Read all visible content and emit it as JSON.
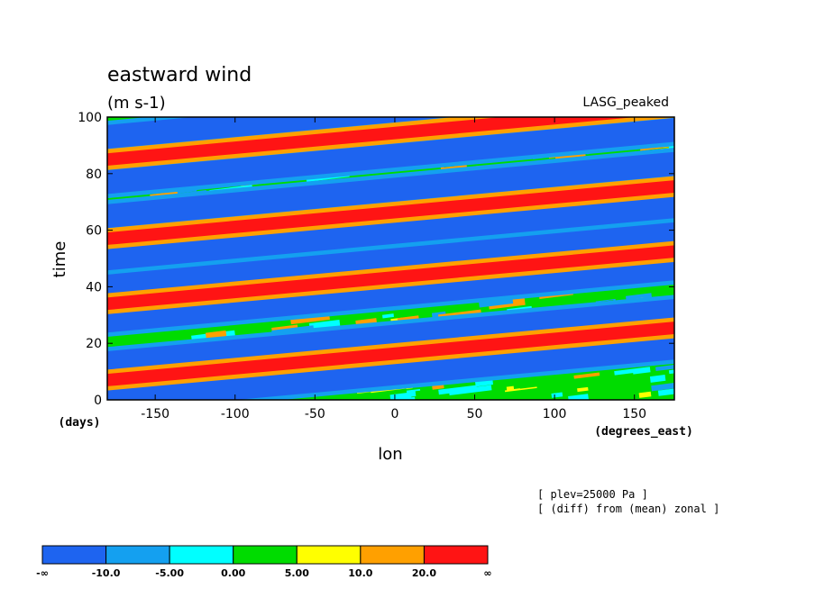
{
  "chart_data": {
    "type": "heatmap",
    "title": "eastward wind",
    "units": "(m s-1)",
    "run_label": "LASG_peaked",
    "xlabel": "lon",
    "x_units": "(degrees_east)",
    "ylabel": "time",
    "y_units": "(days)",
    "xlim": [
      -180,
      175
    ],
    "ylim": [
      0,
      100
    ],
    "x_ticks": [
      -150,
      -100,
      -50,
      0,
      50,
      100,
      150
    ],
    "y_ticks": [
      0,
      20,
      40,
      60,
      80,
      100
    ],
    "notes": [
      "[ plev=25000 Pa ]",
      "[ (diff) from (mean) zonal ]"
    ],
    "colorbar": {
      "labels": [
        "-∞",
        "-10.0",
        "-5.00",
        "0.00",
        "5.00",
        "10.0",
        "20.0",
        "∞"
      ],
      "colors": [
        "#1e64f0",
        "#14a0f0",
        "#00ffff",
        "#00dc00",
        "#ffff00",
        "#ffa000",
        "#ff1414"
      ]
    },
    "bands": [
      {
        "name": "negative anomaly band",
        "value": "< -10.0",
        "y_at_xmin": 0,
        "slope_days_per_degree": 0.052
      },
      {
        "name": "negative anomaly band",
        "value": "< -10.0",
        "y_at_xmin": 13,
        "slope_days_per_degree": 0.052
      },
      {
        "name": "negative anomaly band",
        "value": "< -10.0",
        "y_at_xmin": 28,
        "slope_days_per_degree": 0.052
      },
      {
        "name": "negative anomaly band",
        "value": "< -10.0",
        "y_at_xmin": 41,
        "slope_days_per_degree": 0.052
      },
      {
        "name": "negative anomaly band",
        "value": "< -10.0",
        "y_at_xmin": 50,
        "slope_days_per_degree": 0.052
      },
      {
        "name": "negative anomaly band",
        "value": "< -10.0",
        "y_at_xmin": 65,
        "slope_days_per_degree": 0.052
      },
      {
        "name": "negative anomaly band",
        "value": "< -10.0",
        "y_at_xmin": 77,
        "slope_days_per_degree": 0.052
      },
      {
        "name": "negative anomaly band",
        "value": "< -10.0",
        "y_at_xmin": 93,
        "slope_days_per_degree": 0.052
      },
      {
        "name": "positive anomaly band",
        "value": "> 20.0",
        "y_at_xmin": 7,
        "slope_days_per_degree": 0.052
      },
      {
        "name": "positive anomaly band",
        "value": "> 20.0",
        "y_at_xmin": 34,
        "slope_days_per_degree": 0.052
      },
      {
        "name": "positive anomaly band",
        "value": "> 20.0",
        "y_at_xmin": 57,
        "slope_days_per_degree": 0.052
      },
      {
        "name": "positive anomaly band",
        "value": "> 20.0",
        "y_at_xmin": 85,
        "slope_days_per_degree": 0.052
      }
    ]
  }
}
